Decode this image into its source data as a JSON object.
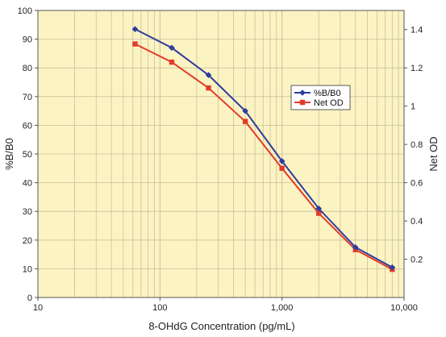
{
  "chart_data": {
    "type": "line",
    "title": "",
    "xlabel": "8-OHdG Concentration (pg/mL)",
    "ylabel": "%B/B0",
    "y2label": "Net OD",
    "x_scale": "log",
    "xlim": [
      10,
      10000
    ],
    "ylim": [
      0,
      100
    ],
    "y2lim": [
      0,
      1.5
    ],
    "x_ticks": [
      10,
      100,
      1000,
      10000
    ],
    "x_tick_labels": [
      "10",
      "100",
      "1,000",
      "10,000"
    ],
    "y_ticks": [
      0,
      10,
      20,
      30,
      40,
      50,
      60,
      70,
      80,
      90,
      100
    ],
    "y_tick_labels": [
      "0",
      "10",
      "20",
      "30",
      "40",
      "50",
      "60",
      "70",
      "80",
      "90",
      "100"
    ],
    "y2_ticks": [
      0.2,
      0.4,
      0.6,
      0.8,
      1.0,
      1.2,
      1.4
    ],
    "y2_tick_labels": [
      "0.2",
      "0.4",
      "0.6",
      "0.8",
      "1",
      "1.2",
      "1.4"
    ],
    "grid": true,
    "legend_position": "center-right",
    "colors": {
      "plot_background": "#fcf3c3",
      "grid": "#c8c09c",
      "border": "#555555"
    },
    "series": [
      {
        "name": "%B/B0",
        "axis": "left",
        "color": "#2e3d9c",
        "marker": "diamond",
        "x": [
          62.5,
          125,
          250,
          500,
          1000,
          2000,
          4000,
          8000
        ],
        "values": [
          93.5,
          87,
          77.5,
          65,
          47.5,
          31,
          17.5,
          10.5
        ]
      },
      {
        "name": "Net OD",
        "axis": "right",
        "color": "#e23c2a",
        "marker": "square",
        "x": [
          62.5,
          125,
          250,
          500,
          1000,
          2000,
          4000,
          8000
        ],
        "values": [
          1.325,
          1.23,
          1.095,
          0.92,
          0.675,
          0.44,
          0.25,
          0.147
        ]
      }
    ]
  }
}
